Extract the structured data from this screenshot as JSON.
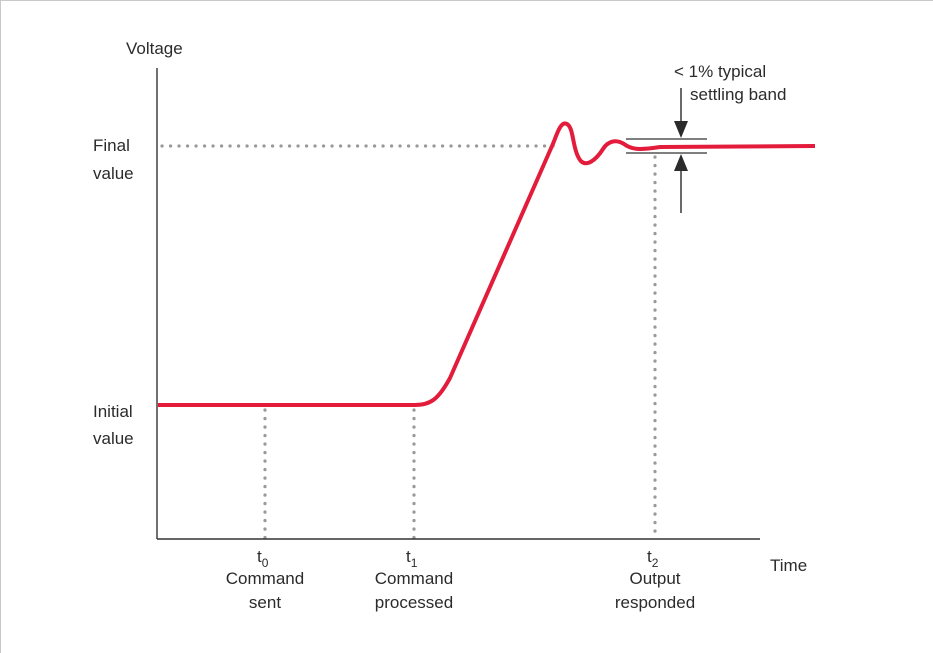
{
  "colors": {
    "curve": "#e21c3a",
    "axis": "#333333",
    "guide": "#999999",
    "frame": "#c9c9c9",
    "text": "#2b2b2b"
  },
  "axes": {
    "y_label": "Voltage",
    "x_label": "Time"
  },
  "levels": {
    "final": [
      "Final",
      "value"
    ],
    "initial": [
      "Initial",
      "value"
    ]
  },
  "events": [
    {
      "symbol": "t",
      "sub": "0",
      "line1": "Command",
      "line2": "sent"
    },
    {
      "symbol": "t",
      "sub": "1",
      "line1": "Command",
      "line2": "processed"
    },
    {
      "symbol": "t",
      "sub": "2",
      "line1": "Output",
      "line2": "responded"
    }
  ],
  "settling_band": {
    "line1": "< 1% typical",
    "line2": "settling band"
  }
}
